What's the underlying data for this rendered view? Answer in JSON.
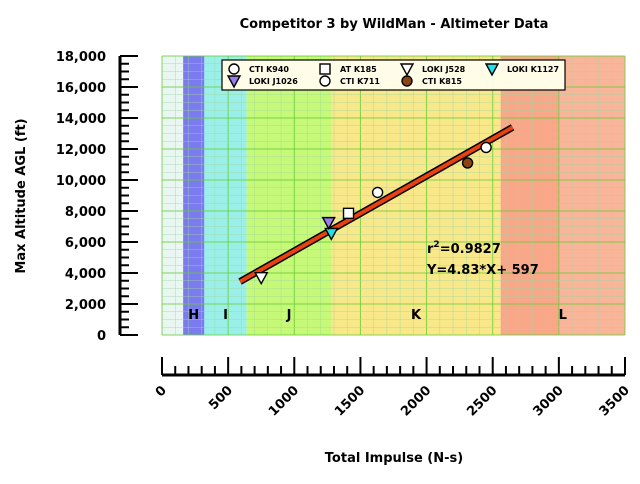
{
  "chart_data": {
    "type": "scatter",
    "title": "Competitor 3 by WildMan - Altimeter Data",
    "xlabel": "Total Impulse (N-s)",
    "ylabel": "Max Altitude AGL (ft)",
    "xlim": [
      0,
      3500
    ],
    "ylim": [
      0,
      18000
    ],
    "x_ticks": [
      0,
      500,
      1000,
      1500,
      2000,
      2500,
      3000,
      3500
    ],
    "x_tick_labels": [
      "0",
      "500",
      "1000",
      "1500",
      "2000",
      "2500",
      "3000",
      "3500"
    ],
    "y_ticks": [
      0,
      2000,
      4000,
      6000,
      8000,
      10000,
      12000,
      14000,
      16000,
      18000
    ],
    "y_tick_labels": [
      "0",
      "2,000",
      "4,000",
      "6,000",
      "8,000",
      "10,000",
      "12,000",
      "14,000",
      "16,000",
      "18,000"
    ],
    "grid": true,
    "legend_position": "top",
    "impulse_classes": [
      {
        "label": "H",
        "from": 160,
        "to": 320,
        "color": "#7b7bef"
      },
      {
        "label": "I",
        "from": 320,
        "to": 640,
        "color": "#9af0e8"
      },
      {
        "label": "J",
        "from": 640,
        "to": 1280,
        "color": "#c6f978"
      },
      {
        "label": "K",
        "from": 1280,
        "to": 2560,
        "color": "#f8e88a"
      },
      {
        "label": "L",
        "from": 2560,
        "to": 3500,
        "color": "#f8a888"
      }
    ],
    "series": [
      {
        "name": "CTI K940",
        "marker": "circle",
        "color": "#ffffff",
        "points": [
          [
            2450,
            12100
          ]
        ]
      },
      {
        "name": "AT K185",
        "marker": "square",
        "color": "#ffffff",
        "points": [
          [
            1410,
            7850
          ]
        ]
      },
      {
        "name": "LOKI J528",
        "marker": "triangle-down",
        "color": "#ffffff",
        "points": [
          [
            750,
            3700
          ]
        ]
      },
      {
        "name": "LOKI K1127",
        "marker": "triangle-down",
        "color": "#22e0e8",
        "points": [
          [
            1280,
            6550
          ]
        ]
      },
      {
        "name": "LOKI J1026",
        "marker": "triangle-down",
        "color": "#9a7cf0",
        "points": [
          [
            1260,
            7250
          ]
        ]
      },
      {
        "name": "CTI K711",
        "marker": "circle",
        "color": "#ffffff",
        "points": [
          [
            1630,
            9200
          ]
        ]
      },
      {
        "name": "CTI K815",
        "marker": "circle",
        "color": "#8b4513",
        "points": [
          [
            2310,
            11100
          ]
        ]
      }
    ],
    "fit": {
      "x_range": [
        590,
        2650
      ],
      "slope": 4.83,
      "intercept": 597,
      "r2_label": "r",
      "r2_sup": "2",
      "r2_value": "=0.9827",
      "equation": "Y=4.83*X+ 597",
      "color": "#e84010"
    }
  }
}
